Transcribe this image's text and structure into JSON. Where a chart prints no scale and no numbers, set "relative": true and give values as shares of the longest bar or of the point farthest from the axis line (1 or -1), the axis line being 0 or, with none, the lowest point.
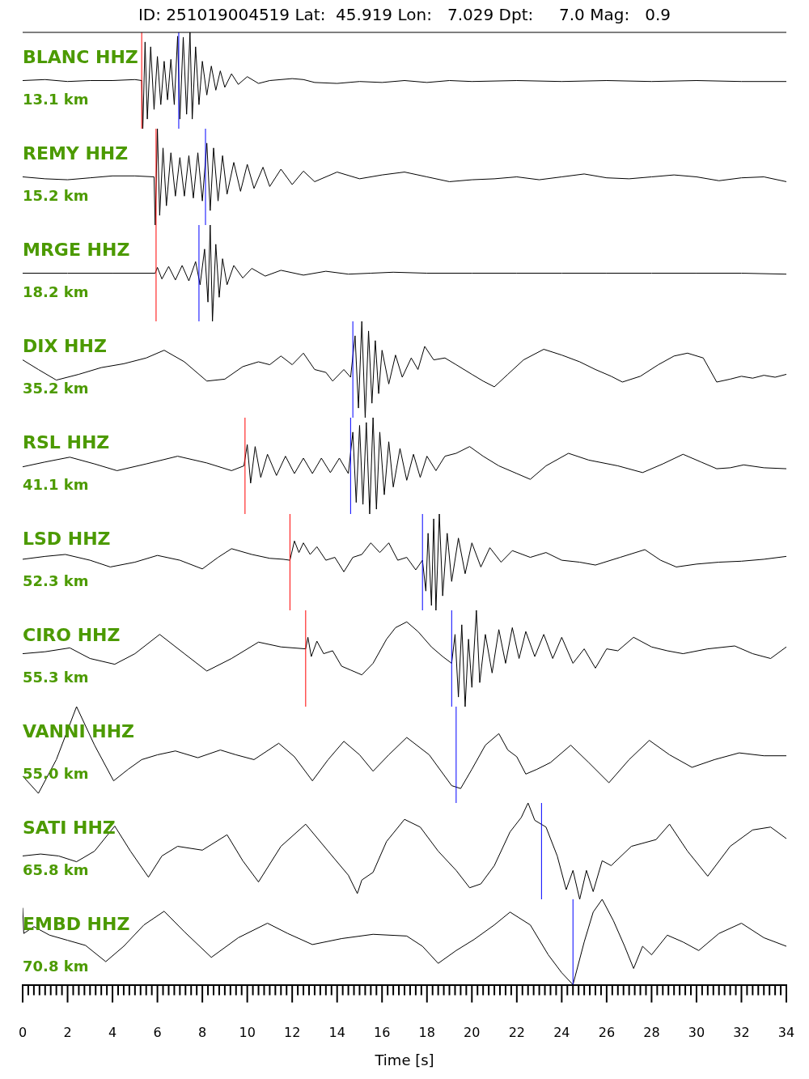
{
  "chart_data": [
    {
      "type": "line",
      "title": "ID: 251019004519 Lat:  45.919 Lon:   7.029 Dpt:     7.0 Mag:   0.9",
      "relative": true,
      "xlim": [
        0,
        34
      ],
      "tick_labels": false,
      "annotations": [
        "BLANC HHZ",
        "13.1 km"
      ],
      "ref_lines": [
        {
          "axis": "x",
          "value": 5.3,
          "color": "#ff0000"
        },
        {
          "axis": "x",
          "value": 6.95,
          "color": "#0000ff"
        }
      ],
      "series": [
        {
          "color": "#000000",
          "x": [
            0,
            1,
            2,
            3,
            4,
            5,
            5.3,
            5.35,
            5.45,
            5.55,
            5.7,
            5.85,
            6.0,
            6.15,
            6.3,
            6.45,
            6.6,
            6.75,
            6.9,
            7.0,
            7.15,
            7.3,
            7.45,
            7.55,
            7.7,
            7.85,
            8.0,
            8.2,
            8.4,
            8.6,
            8.8,
            9.0,
            9.3,
            9.6,
            10,
            10.5,
            11,
            12,
            12.5,
            13,
            14,
            15,
            16,
            17,
            18,
            19,
            20,
            22,
            24,
            26,
            28,
            30,
            32,
            34
          ],
          "values": [
            0.5,
            0.51,
            0.49,
            0.5,
            0.5,
            0.51,
            0.5,
            0.0,
            0.9,
            0.1,
            0.85,
            0.2,
            0.75,
            0.25,
            0.7,
            0.3,
            0.72,
            0.25,
            0.96,
            0.1,
            0.95,
            0.15,
            1,
            0.1,
            0.85,
            0.25,
            0.7,
            0.35,
            0.65,
            0.4,
            0.6,
            0.43,
            0.57,
            0.46,
            0.54,
            0.47,
            0.5,
            0.52,
            0.51,
            0.48,
            0.47,
            0.49,
            0.48,
            0.5,
            0.48,
            0.5,
            0.49,
            0.5,
            0.49,
            0.5,
            0.49,
            0.5,
            0.49,
            0.49
          ]
        }
      ]
    },
    {
      "type": "line",
      "relative": true,
      "xlim": [
        0,
        34
      ],
      "tick_labels": false,
      "annotations": [
        "REMY HHZ",
        "15.2 km"
      ],
      "ref_lines": [
        {
          "axis": "x",
          "value": 5.94,
          "color": "#ff0000"
        },
        {
          "axis": "x",
          "value": 8.14,
          "color": "#0000ff"
        }
      ],
      "series": [
        {
          "color": "#000000",
          "x": [
            0,
            1,
            2,
            3,
            4,
            5,
            5.85,
            5.9,
            6.0,
            6.1,
            6.25,
            6.4,
            6.6,
            6.8,
            7.0,
            7.2,
            7.4,
            7.6,
            7.8,
            8.0,
            8.2,
            8.35,
            8.5,
            8.7,
            8.9,
            9.1,
            9.4,
            9.7,
            10,
            10.3,
            10.7,
            11,
            11.5,
            12,
            12.5,
            13,
            14,
            15,
            16,
            17,
            18,
            19,
            20,
            21,
            22,
            23,
            24,
            25,
            26,
            27,
            28,
            29,
            30,
            31,
            32,
            33,
            34
          ],
          "values": [
            0.5,
            0.48,
            0.47,
            0.49,
            0.51,
            0.51,
            0.5,
            0.0,
            1,
            0.1,
            0.8,
            0.2,
            0.75,
            0.3,
            0.7,
            0.3,
            0.72,
            0.28,
            0.75,
            0.25,
            0.85,
            0.15,
            0.8,
            0.25,
            0.72,
            0.32,
            0.65,
            0.35,
            0.63,
            0.38,
            0.6,
            0.4,
            0.58,
            0.42,
            0.56,
            0.45,
            0.55,
            0.48,
            0.52,
            0.55,
            0.5,
            0.45,
            0.47,
            0.48,
            0.5,
            0.47,
            0.5,
            0.53,
            0.49,
            0.48,
            0.5,
            0.52,
            0.5,
            0.46,
            0.49,
            0.5,
            0.45
          ]
        }
      ]
    },
    {
      "type": "line",
      "relative": true,
      "xlim": [
        0,
        34
      ],
      "tick_labels": false,
      "annotations": [
        "MRGE HHZ",
        "18.2 km"
      ],
      "ref_lines": [
        {
          "axis": "x",
          "value": 5.94,
          "color": "#ff0000"
        },
        {
          "axis": "x",
          "value": 7.85,
          "color": "#0000ff"
        }
      ],
      "series": [
        {
          "color": "#000000",
          "x": [
            0,
            2,
            4,
            5.9,
            6.0,
            6.2,
            6.5,
            6.8,
            7.1,
            7.4,
            7.7,
            7.9,
            8.1,
            8.25,
            8.35,
            8.45,
            8.6,
            8.75,
            8.9,
            9.1,
            9.4,
            9.8,
            10.2,
            10.8,
            11.5,
            12.5,
            13.5,
            14.5,
            15.5,
            16.5,
            18,
            20,
            22,
            24,
            26,
            28,
            30,
            32,
            34
          ],
          "values": [
            0.5,
            0.5,
            0.5,
            0.5,
            0.56,
            0.44,
            0.57,
            0.43,
            0.58,
            0.42,
            0.62,
            0.38,
            0.75,
            0.2,
            1,
            0.0,
            0.8,
            0.25,
            0.65,
            0.38,
            0.58,
            0.45,
            0.55,
            0.47,
            0.53,
            0.48,
            0.52,
            0.49,
            0.5,
            0.51,
            0.5,
            0.5,
            0.5,
            0.5,
            0.5,
            0.5,
            0.5,
            0.5,
            0.49
          ]
        }
      ]
    },
    {
      "type": "line",
      "relative": true,
      "xlim": [
        0,
        34
      ],
      "tick_labels": false,
      "annotations": [
        "DIX HHZ",
        "35.2 km"
      ],
      "ref_lines": [
        {
          "axis": "x",
          "value": 14.7,
          "color": "#0000ff"
        }
      ],
      "series": [
        {
          "color": "#000000",
          "x": [
            0,
            0.7,
            1.5,
            2.5,
            3.5,
            4.5,
            5.5,
            6.3,
            7.2,
            8.2,
            9,
            9.8,
            10.5,
            11,
            11.5,
            12,
            12.5,
            13,
            13.5,
            13.8,
            14.3,
            14.6,
            14.8,
            14.95,
            15.1,
            15.25,
            15.4,
            15.55,
            15.7,
            15.85,
            16.0,
            16.3,
            16.6,
            16.9,
            17.3,
            17.6,
            17.9,
            18.3,
            18.8,
            19.3,
            20,
            20.5,
            21,
            21.6,
            22.3,
            23.2,
            24,
            24.8,
            25.5,
            26.2,
            26.7,
            27.5,
            28.3,
            29,
            29.6,
            30.3,
            30.9,
            31.5,
            32,
            32.5,
            33,
            33.5,
            34
          ],
          "values": [
            0.6,
            0.5,
            0.39,
            0.45,
            0.52,
            0.56,
            0.62,
            0.7,
            0.58,
            0.38,
            0.4,
            0.53,
            0.58,
            0.55,
            0.64,
            0.55,
            0.67,
            0.5,
            0.47,
            0.38,
            0.5,
            0.42,
            0.85,
            0.1,
            1,
            0.0,
            0.9,
            0.15,
            0.8,
            0.25,
            0.7,
            0.35,
            0.65,
            0.42,
            0.62,
            0.5,
            0.74,
            0.6,
            0.62,
            0.55,
            0.45,
            0.38,
            0.32,
            0.45,
            0.6,
            0.71,
            0.65,
            0.58,
            0.5,
            0.43,
            0.37,
            0.43,
            0.55,
            0.64,
            0.67,
            0.62,
            0.37,
            0.4,
            0.43,
            0.41,
            0.44,
            0.42,
            0.45
          ]
        }
      ]
    },
    {
      "type": "line",
      "relative": true,
      "xlim": [
        0,
        34
      ],
      "tick_labels": false,
      "annotations": [
        "RSL HHZ",
        "41.1 km"
      ],
      "ref_lines": [
        {
          "axis": "x",
          "value": 9.9,
          "color": "#ff0000"
        },
        {
          "axis": "x",
          "value": 14.6,
          "color": "#0000ff"
        }
      ],
      "series": [
        {
          "color": "#000000",
          "x": [
            0,
            1,
            2.1,
            3.2,
            4.2,
            5.5,
            6.9,
            8.2,
            9.3,
            9.85,
            10,
            10.15,
            10.35,
            10.6,
            10.9,
            11.3,
            11.7,
            12.1,
            12.5,
            12.9,
            13.3,
            13.7,
            14.1,
            14.5,
            14.7,
            14.85,
            15.0,
            15.15,
            15.3,
            15.45,
            15.6,
            15.75,
            15.9,
            16.1,
            16.3,
            16.5,
            16.8,
            17.1,
            17.4,
            17.7,
            18,
            18.4,
            18.8,
            19.3,
            19.9,
            20.5,
            21.2,
            22,
            22.6,
            23.3,
            24.3,
            25.2,
            26.5,
            27.6,
            28.5,
            29.4,
            30.2,
            30.9,
            31.5,
            32.1,
            33,
            34
          ],
          "values": [
            0.49,
            0.54,
            0.59,
            0.52,
            0.45,
            0.52,
            0.6,
            0.53,
            0.45,
            0.5,
            0.72,
            0.32,
            0.7,
            0.38,
            0.62,
            0.4,
            0.6,
            0.42,
            0.58,
            0.42,
            0.58,
            0.43,
            0.58,
            0.42,
            0.85,
            0.12,
            0.92,
            0.1,
            0.95,
            0.0,
            1,
            0.05,
            0.85,
            0.2,
            0.75,
            0.28,
            0.68,
            0.35,
            0.62,
            0.38,
            0.6,
            0.45,
            0.6,
            0.63,
            0.7,
            0.6,
            0.5,
            0.42,
            0.36,
            0.5,
            0.63,
            0.56,
            0.5,
            0.43,
            0.52,
            0.62,
            0.54,
            0.47,
            0.48,
            0.51,
            0.48,
            0.47
          ]
        }
      ]
    },
    {
      "type": "line",
      "relative": true,
      "xlim": [
        0,
        34
      ],
      "tick_labels": false,
      "annotations": [
        "LSD HHZ",
        "52.3 km"
      ],
      "ref_lines": [
        {
          "axis": "x",
          "value": 11.9,
          "color": "#ff0000"
        },
        {
          "axis": "x",
          "value": 17.8,
          "color": "#0000ff"
        }
      ],
      "series": [
        {
          "color": "#000000",
          "x": [
            0,
            1,
            1.9,
            3,
            3.9,
            5,
            6,
            7,
            8,
            8.7,
            9.3,
            10.2,
            11,
            11.6,
            11.9,
            12.1,
            12.3,
            12.5,
            12.8,
            13.1,
            13.5,
            13.9,
            14.3,
            14.7,
            15.1,
            15.5,
            15.9,
            16.3,
            16.7,
            17.1,
            17.5,
            17.8,
            17.95,
            18.05,
            18.2,
            18.3,
            18.4,
            18.55,
            18.7,
            18.9,
            19.1,
            19.4,
            19.7,
            20.0,
            20.4,
            20.8,
            21.3,
            21.8,
            22.6,
            23.3,
            24,
            24.8,
            25.5,
            26.6,
            27.7,
            28.4,
            29.1,
            30,
            31,
            32,
            33,
            34
          ],
          "values": [
            0.53,
            0.56,
            0.58,
            0.52,
            0.45,
            0.5,
            0.57,
            0.52,
            0.43,
            0.55,
            0.64,
            0.58,
            0.54,
            0.53,
            0.52,
            0.72,
            0.6,
            0.7,
            0.58,
            0.66,
            0.52,
            0.55,
            0.4,
            0.55,
            0.58,
            0.7,
            0.6,
            0.7,
            0.52,
            0.55,
            0.42,
            0.52,
            0.2,
            0.8,
            0.05,
            0.95,
            0.0,
            1,
            0.15,
            0.8,
            0.3,
            0.75,
            0.38,
            0.7,
            0.45,
            0.65,
            0.5,
            0.62,
            0.55,
            0.6,
            0.52,
            0.5,
            0.47,
            0.55,
            0.63,
            0.52,
            0.45,
            0.48,
            0.5,
            0.51,
            0.53,
            0.56
          ]
        }
      ]
    },
    {
      "type": "line",
      "relative": true,
      "xlim": [
        0,
        34
      ],
      "tick_labels": false,
      "annotations": [
        "CIRO HHZ",
        "55.3 km"
      ],
      "ref_lines": [
        {
          "axis": "x",
          "value": 12.6,
          "color": "#ff0000"
        },
        {
          "axis": "x",
          "value": 19.1,
          "color": "#0000ff"
        }
      ],
      "series": [
        {
          "color": "#000000",
          "x": [
            0,
            1,
            2.1,
            3,
            4.1,
            5,
            6.1,
            7.2,
            8.2,
            9.3,
            10.5,
            11.5,
            12.6,
            12.7,
            12.85,
            13.1,
            13.4,
            13.8,
            14.2,
            14.6,
            15.1,
            15.6,
            16.2,
            16.6,
            17.1,
            17.6,
            18.2,
            18.7,
            19.1,
            19.25,
            19.4,
            19.55,
            19.7,
            19.85,
            20.0,
            20.2,
            20.35,
            20.6,
            20.9,
            21.2,
            21.5,
            21.8,
            22.1,
            22.4,
            22.8,
            23.2,
            23.6,
            24,
            24.5,
            25,
            25.5,
            26,
            26.5,
            27.2,
            28,
            28.7,
            29.4,
            30.5,
            31.7,
            32.5,
            33.3,
            34
          ],
          "values": [
            0.55,
            0.57,
            0.61,
            0.5,
            0.44,
            0.55,
            0.75,
            0.55,
            0.37,
            0.5,
            0.67,
            0.62,
            0.6,
            0.72,
            0.52,
            0.68,
            0.55,
            0.58,
            0.42,
            0.38,
            0.33,
            0.45,
            0.7,
            0.82,
            0.88,
            0.78,
            0.62,
            0.52,
            0.45,
            0.75,
            0.1,
            0.85,
            0.0,
            0.7,
            0.2,
            1,
            0.25,
            0.75,
            0.35,
            0.8,
            0.45,
            0.82,
            0.5,
            0.78,
            0.52,
            0.75,
            0.5,
            0.72,
            0.45,
            0.6,
            0.4,
            0.6,
            0.58,
            0.72,
            0.62,
            0.58,
            0.55,
            0.6,
            0.63,
            0.55,
            0.5,
            0.62
          ]
        }
      ]
    },
    {
      "type": "line",
      "relative": true,
      "xlim": [
        0,
        34
      ],
      "tick_labels": false,
      "annotations": [
        "VANNI HHZ",
        "55.0 km"
      ],
      "ref_lines": [
        {
          "axis": "x",
          "value": 19.3,
          "color": "#0000ff"
        }
      ],
      "series": [
        {
          "color": "#000000",
          "x": [
            0,
            0.7,
            1.5,
            2.4,
            3.2,
            4.05,
            4.7,
            5.3,
            6,
            6.8,
            7.8,
            8.8,
            9.5,
            10.3,
            11.4,
            12.1,
            12.9,
            13.6,
            14.3,
            15.0,
            15.6,
            16.3,
            17.1,
            18.1,
            19.1,
            19.5,
            20.0,
            20.6,
            21.2,
            21.6,
            22.0,
            22.4,
            22.9,
            23.5,
            24.4,
            25.2,
            26.1,
            27.0,
            27.9,
            28.8,
            29.8,
            30.8,
            31.9,
            33,
            34
          ],
          "values": [
            0.28,
            0.1,
            0.45,
            1,
            0.6,
            0.23,
            0.35,
            0.45,
            0.5,
            0.54,
            0.47,
            0.55,
            0.5,
            0.45,
            0.62,
            0.48,
            0.23,
            0.45,
            0.64,
            0.5,
            0.33,
            0.5,
            0.68,
            0.5,
            0.18,
            0.15,
            0.35,
            0.6,
            0.72,
            0.55,
            0.48,
            0.3,
            0.35,
            0.42,
            0.6,
            0.42,
            0.21,
            0.45,
            0.65,
            0.5,
            0.37,
            0.45,
            0.52,
            0.49,
            0.49
          ]
        }
      ]
    },
    {
      "type": "line",
      "relative": true,
      "xlim": [
        0,
        34
      ],
      "tick_labels": false,
      "annotations": [
        "SATI HHZ",
        "65.8 km"
      ],
      "ref_lines": [
        {
          "axis": "x",
          "value": 23.1,
          "color": "#0000ff"
        }
      ],
      "series": [
        {
          "color": "#000000",
          "x": [
            0,
            0.8,
            1.6,
            2.4,
            3.2,
            4.1,
            4.8,
            5.6,
            6.2,
            6.9,
            8.0,
            9.1,
            9.8,
            10.5,
            11.5,
            12.6,
            13.6,
            14.5,
            14.9,
            15.1,
            15.6,
            16.2,
            17.0,
            17.7,
            18.5,
            19.3,
            19.9,
            20.4,
            21,
            21.7,
            22.2,
            22.5,
            22.8,
            23.3,
            23.8,
            24.2,
            24.5,
            24.8,
            25.1,
            25.4,
            25.8,
            26.2,
            27.1,
            28.2,
            28.8,
            29.6,
            30.5,
            31.5,
            32.5,
            33.3,
            34
          ],
          "values": [
            0.45,
            0.47,
            0.45,
            0.39,
            0.5,
            0.76,
            0.5,
            0.23,
            0.45,
            0.55,
            0.51,
            0.67,
            0.4,
            0.18,
            0.55,
            0.78,
            0.5,
            0.25,
            0.06,
            0.2,
            0.28,
            0.6,
            0.83,
            0.75,
            0.5,
            0.3,
            0.12,
            0.16,
            0.35,
            0.7,
            0.85,
            1,
            0.82,
            0.75,
            0.45,
            0.1,
            0.3,
            0.0,
            0.3,
            0.08,
            0.4,
            0.35,
            0.55,
            0.62,
            0.78,
            0.5,
            0.24,
            0.55,
            0.72,
            0.75,
            0.63
          ]
        }
      ]
    },
    {
      "type": "line",
      "xlabel": "Time [s]",
      "relative": true,
      "xlim": [
        0,
        34
      ],
      "tick_labels": "x",
      "annotations": [
        "EMBD HHZ",
        "70.8 km"
      ],
      "ref_lines": [
        {
          "axis": "x",
          "value": 24.5,
          "color": "#0000ff"
        }
      ],
      "xticks": [
        0,
        {
          "value": 0.25,
          "label": null
        },
        {
          "value": 0.5,
          "label": null
        },
        {
          "value": 0.75,
          "label": null
        },
        {
          "value": 1,
          "label": null
        },
        {
          "value": 1.25,
          "label": null
        },
        {
          "value": 1.5,
          "label": null
        },
        {
          "value": 1.75,
          "label": null
        },
        2,
        {
          "value": 2.25,
          "label": null
        },
        {
          "value": 2.5,
          "label": null
        },
        {
          "value": 2.75,
          "label": null
        },
        {
          "value": 3,
          "label": null
        },
        {
          "value": 3.25,
          "label": null
        },
        {
          "value": 3.5,
          "label": null
        },
        {
          "value": 3.75,
          "label": null
        },
        4,
        {
          "value": 4.25,
          "label": null
        },
        {
          "value": 4.5,
          "label": null
        },
        {
          "value": 4.75,
          "label": null
        },
        {
          "value": 5,
          "label": null
        },
        {
          "value": 5.25,
          "label": null
        },
        {
          "value": 5.5,
          "label": null
        },
        {
          "value": 5.75,
          "label": null
        },
        6,
        {
          "value": 6.25,
          "label": null
        },
        {
          "value": 6.5,
          "label": null
        },
        {
          "value": 6.75,
          "label": null
        },
        {
          "value": 7,
          "label": null
        },
        {
          "value": 7.25,
          "label": null
        },
        {
          "value": 7.5,
          "label": null
        },
        {
          "value": 7.75,
          "label": null
        },
        8,
        {
          "value": 8.25,
          "label": null
        },
        {
          "value": 8.5,
          "label": null
        },
        {
          "value": 8.75,
          "label": null
        },
        {
          "value": 9,
          "label": null
        },
        {
          "value": 9.25,
          "label": null
        },
        {
          "value": 9.5,
          "label": null
        },
        {
          "value": 9.75,
          "label": null
        },
        10,
        {
          "value": 10.25,
          "label": null
        },
        {
          "value": 10.5,
          "label": null
        },
        {
          "value": 10.75,
          "label": null
        },
        {
          "value": 11,
          "label": null
        },
        {
          "value": 11.25,
          "label": null
        },
        {
          "value": 11.5,
          "label": null
        },
        {
          "value": 11.75,
          "label": null
        },
        12,
        {
          "value": 12.25,
          "label": null
        },
        {
          "value": 12.5,
          "label": null
        },
        {
          "value": 12.75,
          "label": null
        },
        {
          "value": 13,
          "label": null
        },
        {
          "value": 13.25,
          "label": null
        },
        {
          "value": 13.5,
          "label": null
        },
        {
          "value": 13.75,
          "label": null
        },
        14,
        {
          "value": 14.25,
          "label": null
        },
        {
          "value": 14.5,
          "label": null
        },
        {
          "value": 14.75,
          "label": null
        },
        {
          "value": 15,
          "label": null
        },
        {
          "value": 15.25,
          "label": null
        },
        {
          "value": 15.5,
          "label": null
        },
        {
          "value": 15.75,
          "label": null
        },
        16,
        {
          "value": 16.25,
          "label": null
        },
        {
          "value": 16.5,
          "label": null
        },
        {
          "value": 16.75,
          "label": null
        },
        {
          "value": 17,
          "label": null
        },
        {
          "value": 17.25,
          "label": null
        },
        {
          "value": 17.5,
          "label": null
        },
        {
          "value": 17.75,
          "label": null
        },
        18,
        {
          "value": 18.25,
          "label": null
        },
        {
          "value": 18.5,
          "label": null
        },
        {
          "value": 18.75,
          "label": null
        },
        {
          "value": 19,
          "label": null
        },
        {
          "value": 19.25,
          "label": null
        },
        {
          "value": 19.5,
          "label": null
        },
        {
          "value": 19.75,
          "label": null
        },
        20,
        {
          "value": 20.25,
          "label": null
        },
        {
          "value": 20.5,
          "label": null
        },
        {
          "value": 20.75,
          "label": null
        },
        {
          "value": 21,
          "label": null
        },
        {
          "value": 21.25,
          "label": null
        },
        {
          "value": 21.5,
          "label": null
        },
        {
          "value": 21.75,
          "label": null
        },
        22,
        {
          "value": 22.25,
          "label": null
        },
        {
          "value": 22.5,
          "label": null
        },
        {
          "value": 22.75,
          "label": null
        },
        {
          "value": 23,
          "label": null
        },
        {
          "value": 23.25,
          "label": null
        },
        {
          "value": 23.5,
          "label": null
        },
        {
          "value": 23.75,
          "label": null
        },
        24,
        {
          "value": 24.25,
          "label": null
        },
        {
          "value": 24.5,
          "label": null
        },
        {
          "value": 24.75,
          "label": null
        },
        {
          "value": 25,
          "label": null
        },
        {
          "value": 25.25,
          "label": null
        },
        {
          "value": 25.5,
          "label": null
        },
        {
          "value": 25.75,
          "label": null
        },
        26,
        {
          "value": 26.25,
          "label": null
        },
        {
          "value": 26.5,
          "label": null
        },
        {
          "value": 26.75,
          "label": null
        },
        {
          "value": 27,
          "label": null
        },
        {
          "value": 27.25,
          "label": null
        },
        {
          "value": 27.5,
          "label": null
        },
        {
          "value": 27.75,
          "label": null
        },
        28,
        {
          "value": 28.25,
          "label": null
        },
        {
          "value": 28.5,
          "label": null
        },
        {
          "value": 28.75,
          "label": null
        },
        {
          "value": 29,
          "label": null
        },
        {
          "value": 29.25,
          "label": null
        },
        {
          "value": 29.5,
          "label": null
        },
        {
          "value": 29.75,
          "label": null
        },
        30,
        {
          "value": 30.25,
          "label": null
        },
        {
          "value": 30.5,
          "label": null
        },
        {
          "value": 30.75,
          "label": null
        },
        {
          "value": 31,
          "label": null
        },
        {
          "value": 31.25,
          "label": null
        },
        {
          "value": 31.5,
          "label": null
        },
        {
          "value": 31.75,
          "label": null
        },
        32,
        {
          "value": 32.25,
          "label": null
        },
        {
          "value": 32.5,
          "label": null
        },
        {
          "value": 32.75,
          "label": null
        },
        {
          "value": 33,
          "label": null
        },
        {
          "value": 33.25,
          "label": null
        },
        {
          "value": 33.5,
          "label": null
        },
        {
          "value": 33.75,
          "label": null
        },
        34
      ],
      "series": [
        {
          "color": "#000000",
          "x": [
            0,
            0.05,
            0.5,
            1.2,
            2,
            2.8,
            3.7,
            4.5,
            5.4,
            6.3,
            7.2,
            8.4,
            9.6,
            10.9,
            11.8,
            12.9,
            14.2,
            15.6,
            17.1,
            17.8,
            18.5,
            19.3,
            20.1,
            21.0,
            21.7,
            22.6,
            23.4,
            24.0,
            24.5,
            25.0,
            25.4,
            25.8,
            26.3,
            26.8,
            27.2,
            27.6,
            28.0,
            28.7,
            29.4,
            30.1,
            31,
            32,
            33,
            34
          ],
          "values": [
            0.9,
            0.6,
            0.68,
            0.58,
            0.52,
            0.46,
            0.27,
            0.45,
            0.7,
            0.86,
            0.62,
            0.32,
            0.55,
            0.72,
            0.6,
            0.47,
            0.54,
            0.59,
            0.57,
            0.45,
            0.25,
            0.4,
            0.53,
            0.7,
            0.85,
            0.7,
            0.35,
            0.14,
            0.0,
            0.5,
            0.85,
            1,
            0.75,
            0.45,
            0.19,
            0.45,
            0.35,
            0.58,
            0.5,
            0.4,
            0.6,
            0.72,
            0.55,
            0.45
          ]
        }
      ]
    }
  ]
}
